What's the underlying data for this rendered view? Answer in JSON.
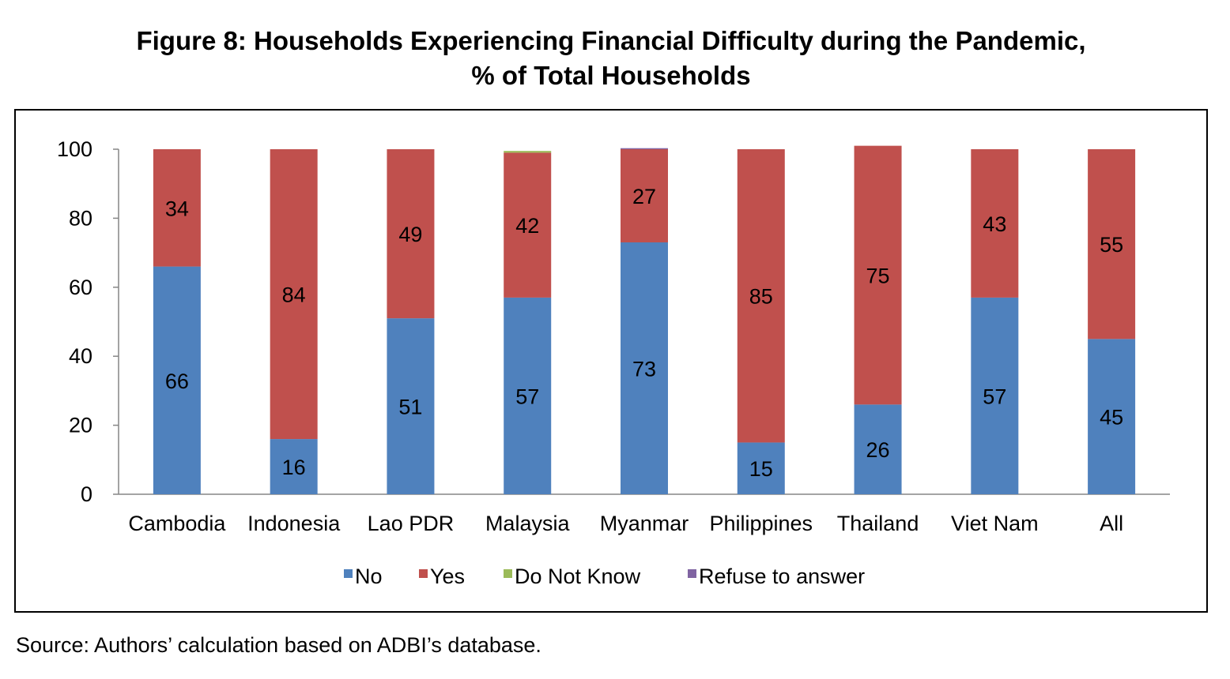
{
  "figure": {
    "title_line1": "Figure 8: Households Experiencing Financial Difficulty during the Pandemic,",
    "title_line2": "% of Total Households",
    "source": "Source: Authors’ calculation based on ADBI’s database."
  },
  "chart_data": {
    "type": "bar",
    "stacked": true,
    "categories": [
      "Cambodia",
      "Indonesia",
      "Lao PDR",
      "Malaysia",
      "Myanmar",
      "Philippines",
      "Thailand",
      "Viet Nam",
      "All"
    ],
    "series": [
      {
        "name": "No",
        "color": "#4F81BD",
        "values": [
          66,
          16,
          51,
          57,
          73,
          15,
          26,
          57,
          45
        ]
      },
      {
        "name": "Yes",
        "color": "#C0504D",
        "values": [
          34,
          84,
          49,
          42,
          27,
          85,
          75,
          43,
          55
        ]
      },
      {
        "name": "Do Not Know",
        "color": "#9BBB59",
        "values": [
          0,
          0,
          0,
          0.5,
          0,
          0,
          0,
          0,
          0
        ]
      },
      {
        "name": "Refuse to answer",
        "color": "#8064A2",
        "values": [
          0,
          0,
          0,
          0,
          0.3,
          0,
          0,
          0,
          0
        ]
      }
    ],
    "data_labels": {
      "No": [
        "66",
        "16",
        "51",
        "57",
        "73",
        "15",
        "26",
        "57",
        "45"
      ],
      "Yes": [
        "34",
        "84",
        "49",
        "42",
        "27",
        "85",
        "75",
        "43",
        "55"
      ]
    },
    "y_ticks": [
      "0",
      "20",
      "40",
      "60",
      "80",
      "100"
    ],
    "ylim": [
      0,
      100
    ],
    "grid": false,
    "legend_position": "bottom"
  }
}
